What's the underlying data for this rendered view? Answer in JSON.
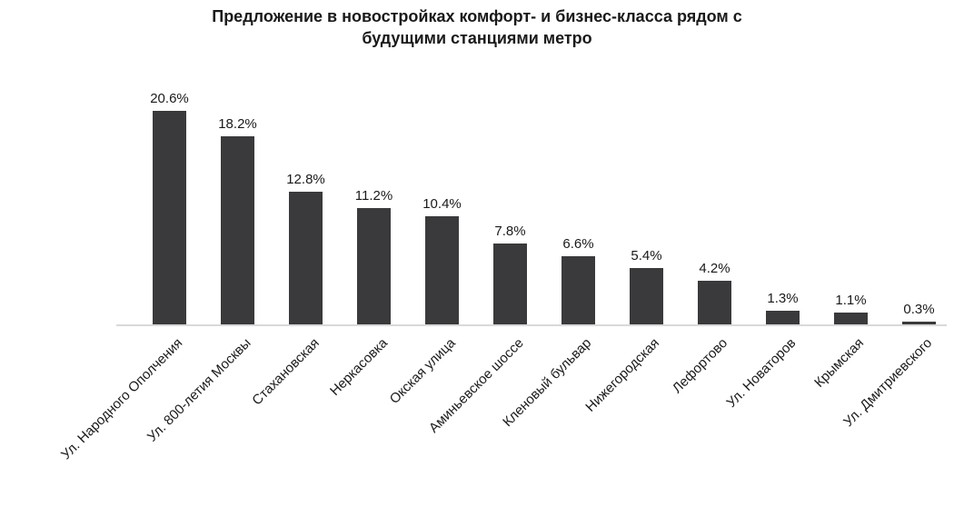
{
  "chart_data": {
    "type": "bar",
    "title": "Предложение в новостройках комфорт- и бизнес-класса рядом с будущими станциями метро",
    "title_lines": [
      "Предложение в новостройках комфорт- и бизнес-класса рядом с",
      "будущими станциями метро"
    ],
    "categories": [
      "Ул. Народного Ополчения",
      "Ул. 800-летия Москвы",
      "Стахановская",
      "Неркасовка",
      "Окская улица",
      "Аминьевское шоссе",
      "Кленовый бульвар",
      "Нижегородская",
      "Лефортово",
      "Ул. Новаторов",
      "Крымская",
      "Ул. Дмитриевского"
    ],
    "values": [
      20.6,
      18.2,
      12.8,
      11.2,
      10.4,
      7.8,
      6.6,
      5.4,
      4.2,
      1.3,
      1.1,
      0.3
    ],
    "value_labels": [
      "20.6%",
      "18.2%",
      "12.8%",
      "11.2%",
      "10.4%",
      "7.8%",
      "6.6%",
      "5.4%",
      "4.2%",
      "1.3%",
      "1.1%",
      "0.3%"
    ],
    "xlabel": "",
    "ylabel": "",
    "ylim": [
      0,
      22
    ],
    "grid": false,
    "legend": false,
    "bar_color": "#3a3a3c",
    "axis_line_color": "#d9d9d9",
    "text_color": "#1a1a1a",
    "background": "#ffffff"
  }
}
